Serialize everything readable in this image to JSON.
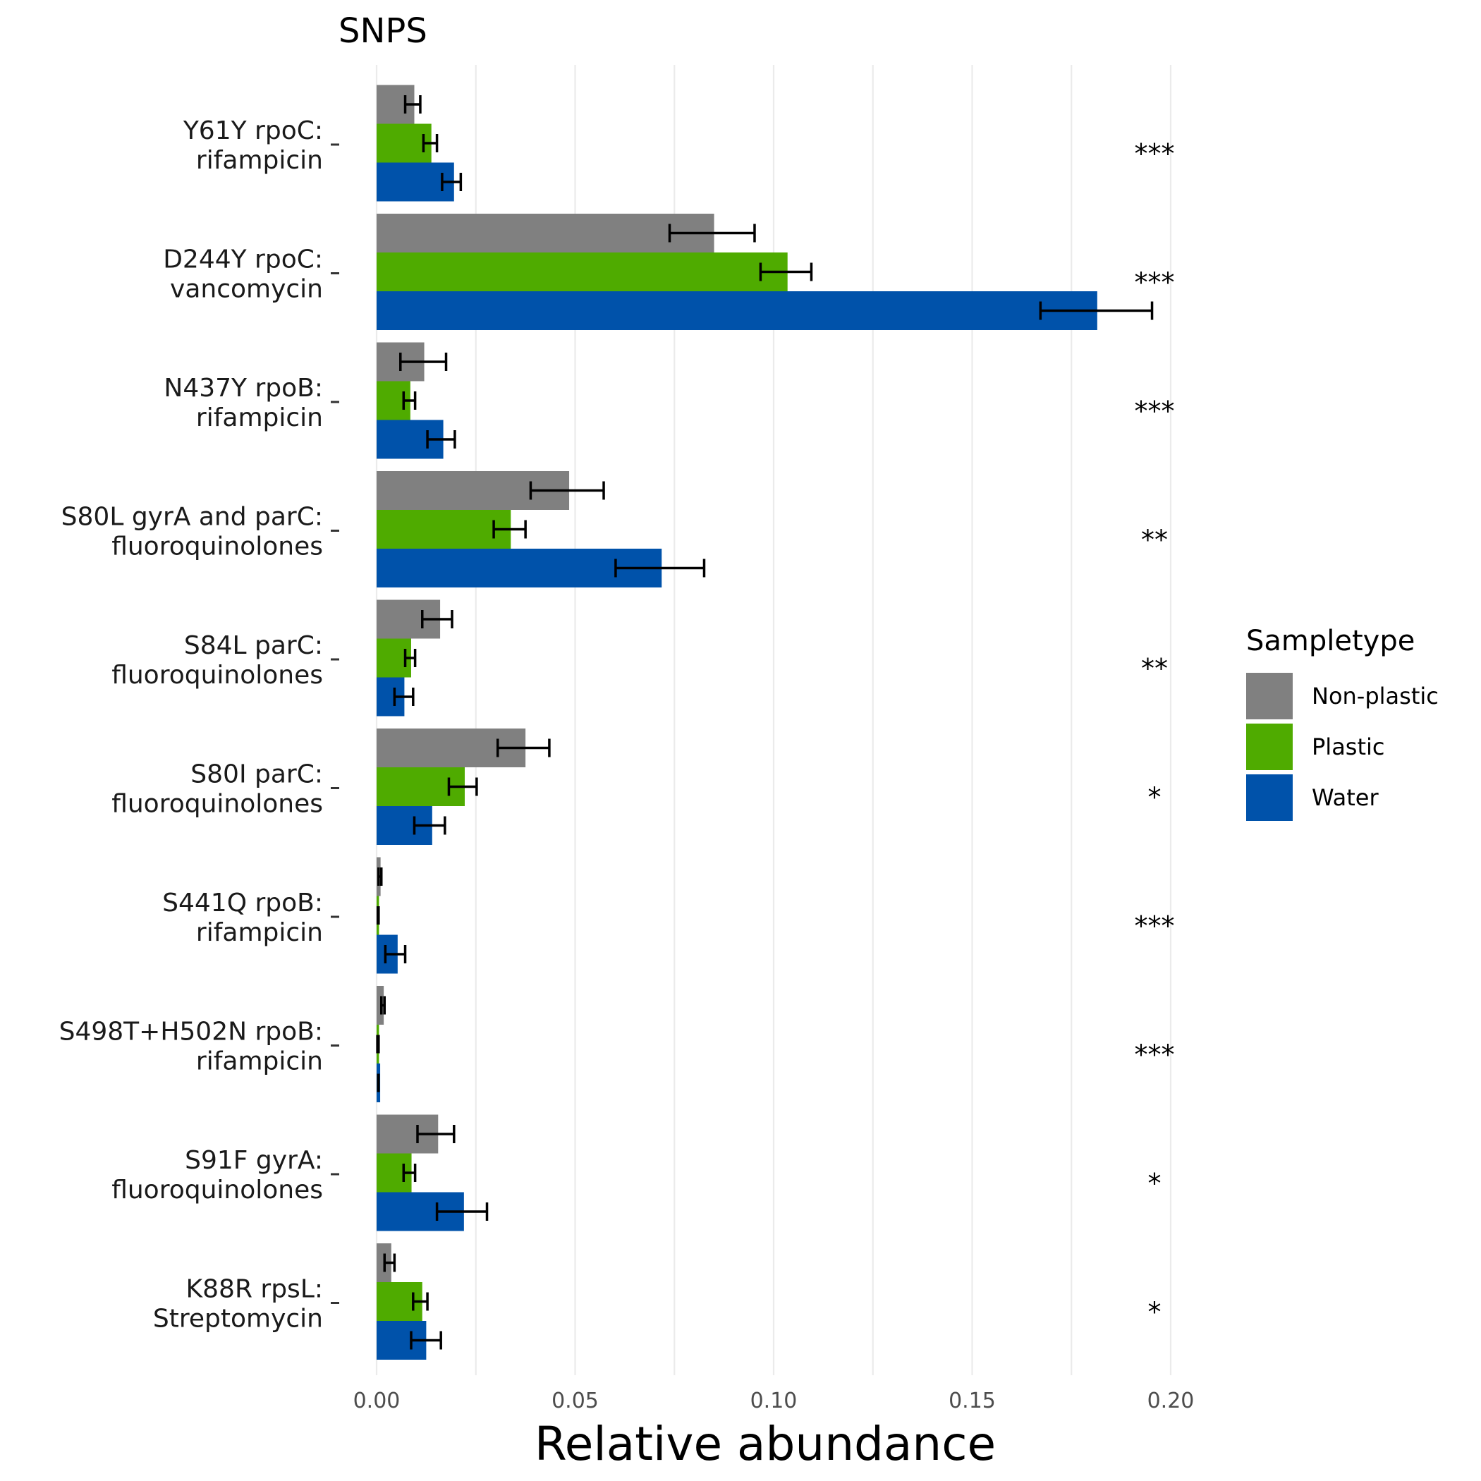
{
  "chart_data": {
    "type": "bar",
    "orientation": "horizontal",
    "title": "SNPS",
    "xlabel": "Relative abundance",
    "ylabel": "",
    "xlim": [
      0,
      0.2
    ],
    "xticks": [
      "0.00",
      "0.05",
      "0.10",
      "0.15",
      "0.20"
    ],
    "xtick_values": [
      0,
      0.05,
      0.1,
      0.15,
      0.2
    ],
    "grid": "vertical",
    "legend": {
      "title": "Sampletype",
      "position": "right",
      "entries": [
        "Non-plastic",
        "Plastic",
        "Water"
      ]
    },
    "colors": {
      "Non-plastic": "#808080",
      "Plastic": "#4fab00",
      "Water": "#0052aa"
    },
    "categories": [
      [
        "Y61Y rpoC:",
        "rifampicin"
      ],
      [
        "D244Y rpoC:",
        "vancomycin"
      ],
      [
        "N437Y rpoB:",
        "rifampicin"
      ],
      [
        "S80L gyrA and parC:",
        "fluoroquinolones"
      ],
      [
        "S84L parC:",
        "fluoroquinolones"
      ],
      [
        "S80I parC:",
        "fluoroquinolones"
      ],
      [
        "S441Q rpoB:",
        "rifampicin"
      ],
      [
        "S498T+H502N rpoB:",
        "rifampicin"
      ],
      [
        "S91F gyrA:",
        "fluoroquinolones"
      ],
      [
        "K88R rpsL:",
        "Streptomycin"
      ]
    ],
    "significance": [
      "***",
      "***",
      "***",
      "**",
      "**",
      "*",
      "***",
      "***",
      "*",
      "*"
    ],
    "series": [
      {
        "name": "Non-plastic",
        "values": [
          0.0095,
          0.085,
          0.012,
          0.0485,
          0.016,
          0.0375,
          0.001,
          0.0018,
          0.0155,
          0.0037
        ],
        "err_low": [
          0.0072,
          0.0738,
          0.006,
          0.0388,
          0.0115,
          0.0305,
          0.0005,
          0.0012,
          0.0103,
          0.002
        ],
        "err_high": [
          0.011,
          0.0952,
          0.0175,
          0.0572,
          0.019,
          0.0435,
          0.0012,
          0.002,
          0.0195,
          0.0045
        ]
      },
      {
        "name": "Plastic",
        "values": [
          0.0138,
          0.1035,
          0.0085,
          0.0338,
          0.0087,
          0.0222,
          0.0006,
          0.0006,
          0.0088,
          0.0115
        ],
        "err_low": [
          0.0118,
          0.0967,
          0.0068,
          0.0295,
          0.0072,
          0.0182,
          0.0003,
          0.0002,
          0.0068,
          0.0092
        ],
        "err_high": [
          0.0152,
          0.1095,
          0.0097,
          0.0375,
          0.0097,
          0.0252,
          0.0005,
          0.0005,
          0.0097,
          0.0128
        ]
      },
      {
        "name": "Water",
        "values": [
          0.0195,
          0.1815,
          0.0168,
          0.0718,
          0.007,
          0.014,
          0.0053,
          0.0009,
          0.022,
          0.0125
        ],
        "err_low": [
          0.0165,
          0.1672,
          0.0128,
          0.0602,
          0.0045,
          0.0095,
          0.0022,
          0.0004,
          0.0152,
          0.0087
        ],
        "err_high": [
          0.0212,
          0.1953,
          0.0197,
          0.0825,
          0.0092,
          0.0172,
          0.0072,
          0.0005,
          0.0278,
          0.0162
        ]
      }
    ]
  }
}
